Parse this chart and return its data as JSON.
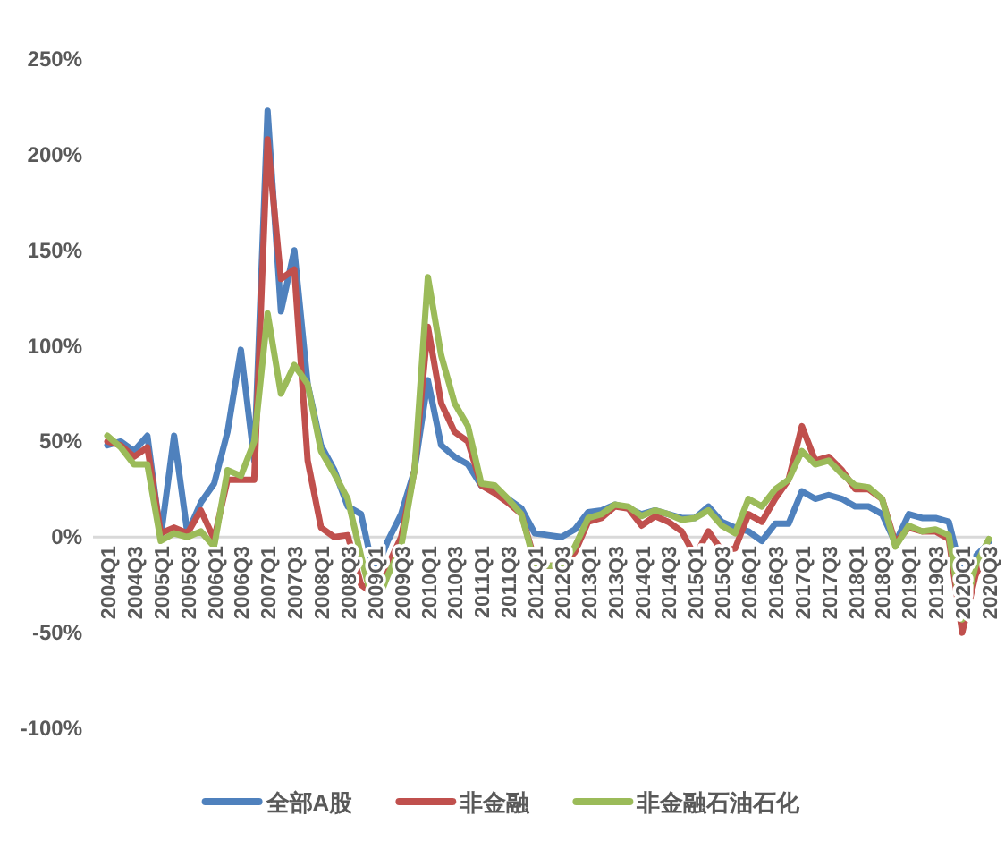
{
  "chart_data": {
    "type": "line",
    "categories": [
      "2004Q1",
      null,
      "2004Q3",
      null,
      "2005Q1",
      null,
      "2005Q3",
      null,
      "2006Q1",
      null,
      "2006Q3",
      null,
      "2007Q1",
      null,
      "2007Q3",
      null,
      "2008Q1",
      null,
      "2008Q3",
      null,
      "2009Q1",
      null,
      "2009Q3",
      null,
      "2010Q1",
      null,
      "2010Q3",
      null,
      "2011Q1",
      null,
      "2011Q3",
      null,
      "2012Q1",
      null,
      "2012Q3",
      null,
      "2013Q1",
      null,
      "2013Q3",
      null,
      "2014Q1",
      null,
      "2014Q3",
      null,
      "2015Q1",
      null,
      "2015Q3",
      null,
      "2016Q1",
      null,
      "2016Q3",
      null,
      "2017Q1",
      null,
      "2017Q3",
      null,
      "2018Q1",
      null,
      "2018Q3",
      null,
      "2019Q1",
      null,
      "2019Q3",
      null,
      "2020Q1",
      null,
      "2020Q3"
    ],
    "series": [
      {
        "name": "全部A股",
        "color": "#4f81bd",
        "values": [
          48,
          50,
          45,
          53,
          0,
          53,
          2,
          18,
          28,
          55,
          98,
          40,
          223,
          118,
          150,
          80,
          48,
          35,
          16,
          12,
          -20,
          -2,
          12,
          35,
          82,
          48,
          42,
          38,
          27,
          25,
          20,
          15,
          2,
          1,
          0,
          4,
          13,
          14,
          17,
          15,
          12,
          14,
          12,
          10,
          10,
          16,
          8,
          5,
          3,
          -2,
          7,
          7,
          24,
          20,
          22,
          20,
          16,
          16,
          12,
          -3,
          12,
          10,
          10,
          8,
          -20,
          -10,
          -3
        ]
      },
      {
        "name": "非金融",
        "color": "#c0504d",
        "values": [
          50,
          48,
          42,
          47,
          2,
          5,
          2,
          14,
          -1,
          30,
          30,
          30,
          208,
          135,
          140,
          40,
          5,
          0,
          1,
          -25,
          -30,
          -15,
          0,
          35,
          110,
          70,
          55,
          50,
          27,
          23,
          18,
          12,
          -12,
          -15,
          -15,
          -8,
          8,
          10,
          16,
          15,
          6,
          11,
          8,
          3,
          -10,
          3,
          -7,
          -6,
          12,
          8,
          20,
          30,
          58,
          40,
          42,
          35,
          25,
          25,
          20,
          -3,
          5,
          3,
          3,
          -1,
          -50,
          -20,
          -5
        ]
      },
      {
        "name": "非金融石油石化",
        "color": "#9bbb59",
        "values": [
          53,
          47,
          38,
          38,
          -2,
          2,
          0,
          3,
          -5,
          35,
          32,
          50,
          117,
          75,
          90,
          80,
          45,
          33,
          20,
          -10,
          -38,
          -20,
          -5,
          35,
          136,
          95,
          70,
          58,
          28,
          27,
          20,
          12,
          -14,
          -15,
          -15,
          -5,
          10,
          12,
          17,
          16,
          11,
          14,
          12,
          9,
          10,
          14,
          6,
          2,
          20,
          16,
          25,
          30,
          45,
          38,
          40,
          33,
          27,
          26,
          20,
          -5,
          6,
          3,
          4,
          1,
          -43,
          -15,
          -1
        ]
      }
    ],
    "ylim": [
      -100,
      250
    ],
    "yticks": [
      {
        "value": -100,
        "label": "-100%"
      },
      {
        "value": -50,
        "label": "-50%"
      },
      {
        "value": 0,
        "label": "0%"
      },
      {
        "value": 50,
        "label": "50%"
      },
      {
        "value": 100,
        "label": "100%"
      },
      {
        "value": 150,
        "label": "150%"
      },
      {
        "value": 200,
        "label": "200%"
      },
      {
        "value": 250,
        "label": "250%"
      }
    ],
    "grid": false,
    "legend": "bottom",
    "marker": "none",
    "line_style": "solid"
  }
}
